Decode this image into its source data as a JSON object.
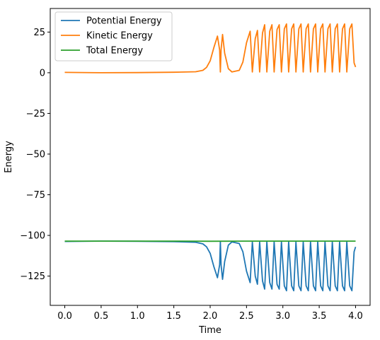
{
  "chart_data": {
    "type": "line",
    "title": "",
    "xlabel": "Time",
    "ylabel": "Energy",
    "xlim": [
      -0.2,
      4.2
    ],
    "ylim": [
      -143,
      39.5
    ],
    "xticks": [
      0.0,
      0.5,
      1.0,
      1.5,
      2.0,
      2.5,
      3.0,
      3.5,
      4.0
    ],
    "xtick_labels": [
      "0.0",
      "0.5",
      "1.0",
      "1.5",
      "2.0",
      "2.5",
      "3.0",
      "3.5",
      "4.0"
    ],
    "yticks": [
      25,
      0,
      -25,
      -50,
      -75,
      -100,
      -125
    ],
    "ytick_labels": [
      "25",
      "0",
      "−25",
      "−50",
      "−75",
      "−100",
      "−125"
    ],
    "grid": false,
    "legend_position": "top-left",
    "series": [
      {
        "name": "Potential Energy",
        "color": "#1f77b4",
        "x": [
          0.0,
          0.5,
          1.0,
          1.5,
          1.8,
          1.9,
          1.95,
          2.0,
          2.05,
          2.1,
          2.13,
          2.14,
          2.15,
          2.17,
          2.2,
          2.25,
          2.3,
          2.35,
          2.4,
          2.45,
          2.5,
          2.55,
          2.58,
          2.62,
          2.65,
          2.68,
          2.72,
          2.75,
          2.78,
          2.82,
          2.85,
          2.88,
          2.92,
          2.95,
          2.98,
          3.02,
          3.05,
          3.08,
          3.12,
          3.15,
          3.18,
          3.22,
          3.25,
          3.28,
          3.32,
          3.35,
          3.38,
          3.42,
          3.45,
          3.48,
          3.52,
          3.55,
          3.58,
          3.62,
          3.65,
          3.68,
          3.72,
          3.75,
          3.78,
          3.82,
          3.85,
          3.88,
          3.92,
          3.95,
          3.98,
          4.0
        ],
        "y": [
          -103.7,
          -103.5,
          -103.6,
          -103.8,
          -104.2,
          -105.2,
          -107.0,
          -111.0,
          -119.0,
          -126.0,
          -118.0,
          -104.0,
          -118.0,
          -127.0,
          -116.0,
          -106.0,
          -104.0,
          -104.5,
          -105.0,
          -110.0,
          -122.0,
          -129.0,
          -104.0,
          -125.0,
          -130.0,
          -104.0,
          -128.0,
          -133.0,
          -104.0,
          -129.0,
          -133.0,
          -104.0,
          -130.0,
          -133.0,
          -104.0,
          -131.0,
          -134.0,
          -104.0,
          -131.0,
          -134.0,
          -104.0,
          -131.0,
          -134.0,
          -104.0,
          -131.0,
          -134.0,
          -104.0,
          -131.0,
          -134.0,
          -104.0,
          -131.0,
          -134.0,
          -104.0,
          -131.0,
          -134.0,
          -104.0,
          -131.0,
          -134.0,
          -104.0,
          -131.0,
          -134.0,
          -104.0,
          -131.0,
          -134.0,
          -110.0,
          -107.0
        ]
      },
      {
        "name": "Kinetic Energy",
        "color": "#ff7f0e",
        "x": [
          0.0,
          0.5,
          1.0,
          1.5,
          1.8,
          1.9,
          1.95,
          2.0,
          2.05,
          2.1,
          2.13,
          2.14,
          2.15,
          2.17,
          2.2,
          2.25,
          2.3,
          2.35,
          2.4,
          2.45,
          2.5,
          2.55,
          2.58,
          2.62,
          2.65,
          2.68,
          2.72,
          2.75,
          2.78,
          2.82,
          2.85,
          2.88,
          2.92,
          2.95,
          2.98,
          3.02,
          3.05,
          3.08,
          3.12,
          3.15,
          3.18,
          3.22,
          3.25,
          3.28,
          3.32,
          3.35,
          3.38,
          3.42,
          3.45,
          3.48,
          3.52,
          3.55,
          3.58,
          3.62,
          3.65,
          3.68,
          3.72,
          3.75,
          3.78,
          3.82,
          3.85,
          3.88,
          3.92,
          3.95,
          3.98,
          4.0
        ],
        "y": [
          0.2,
          0.0,
          0.1,
          0.3,
          0.6,
          1.5,
          3.3,
          7.3,
          15.3,
          22.5,
          14.0,
          0.5,
          14.0,
          23.5,
          12.0,
          2.5,
          0.5,
          1.0,
          1.5,
          6.5,
          18.5,
          25.5,
          0.5,
          21.0,
          26.0,
          0.5,
          24.5,
          29.5,
          0.5,
          25.5,
          29.5,
          0.5,
          26.5,
          29.5,
          0.5,
          27.0,
          30.0,
          0.5,
          27.0,
          30.0,
          0.5,
          27.0,
          30.0,
          0.5,
          27.0,
          30.0,
          0.5,
          27.0,
          30.0,
          0.5,
          27.0,
          30.0,
          0.5,
          27.0,
          30.0,
          0.5,
          27.0,
          30.0,
          0.5,
          27.0,
          30.0,
          0.5,
          27.0,
          30.0,
          6.0,
          3.5
        ]
      },
      {
        "name": "Total Energy",
        "color": "#2ca02c",
        "x": [
          0.0,
          0.5,
          1.0,
          1.5,
          2.0,
          2.5,
          3.0,
          3.5,
          4.0
        ],
        "y": [
          -103.5,
          -103.5,
          -103.5,
          -103.5,
          -103.6,
          -103.5,
          -103.5,
          -103.5,
          -103.5
        ]
      }
    ]
  }
}
